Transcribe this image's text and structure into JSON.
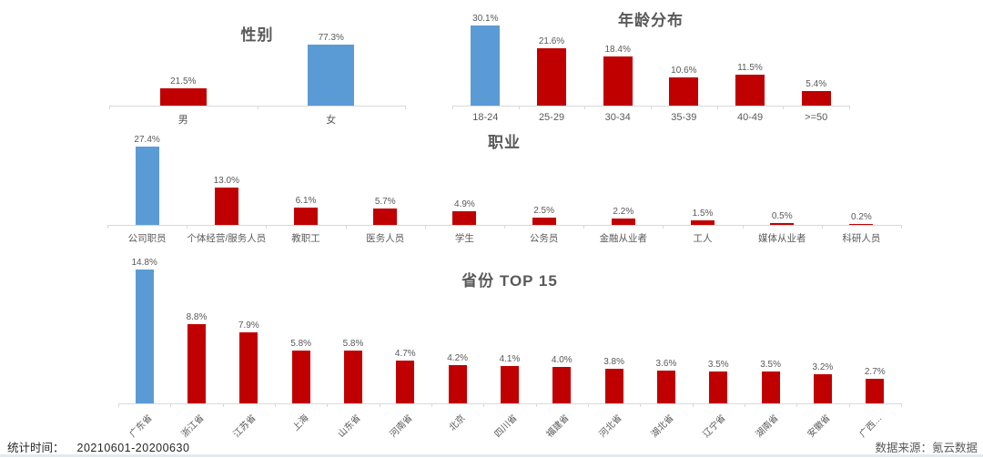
{
  "colors": {
    "highlight": "#5b9bd5",
    "bar": "#c00000",
    "axis": "#d9d9d9",
    "label": "#595959"
  },
  "footer": {
    "stats_time_label": "统计时间：",
    "stats_time_value": "20210601-20200630",
    "source_label": "数据来源：",
    "source_value": "氪云数据"
  },
  "chart_data": [
    {
      "id": "gender",
      "type": "bar",
      "title": "性别",
      "categories": [
        "男",
        "女"
      ],
      "values": [
        21.5,
        77.3
      ],
      "unit": "%",
      "value_format": "one_decimal_percent",
      "highlight_index": 1,
      "xlabel": "",
      "ylabel": "",
      "ylim": [
        0,
        80
      ],
      "grid": false,
      "legend": "none"
    },
    {
      "id": "age",
      "type": "bar",
      "title": "年龄分布",
      "categories": [
        "18-24",
        "25-29",
        "30-34",
        "35-39",
        "40-49",
        ">=50"
      ],
      "values": [
        30.1,
        21.6,
        18.4,
        10.6,
        11.5,
        5.4
      ],
      "unit": "%",
      "value_format": "one_decimal_percent",
      "highlight_index": 0,
      "xlabel": "",
      "ylabel": "",
      "ylim": [
        0,
        33
      ],
      "grid": false,
      "legend": "none"
    },
    {
      "id": "occupation",
      "type": "bar",
      "title": "职业",
      "categories": [
        "公司职员",
        "个体经营/服务人员",
        "教职工",
        "医务人员",
        "学生",
        "公务员",
        "金融从业者",
        "工人",
        "媒体从业者",
        "科研人员"
      ],
      "values": [
        27.4,
        13.0,
        6.1,
        5.7,
        4.9,
        2.5,
        2.2,
        1.5,
        0.5,
        0.2
      ],
      "unit": "%",
      "value_format": "one_decimal_percent",
      "highlight_index": 0,
      "xlabel": "",
      "ylabel": "",
      "ylim": [
        0,
        30
      ],
      "grid": false,
      "legend": "none"
    },
    {
      "id": "province",
      "type": "bar",
      "title": "省份 TOP 15",
      "categories": [
        "广东省",
        "浙江省",
        "江苏省",
        "上海",
        "山东省",
        "河南省",
        "北京",
        "四川省",
        "福建省",
        "河北省",
        "湖北省",
        "辽宁省",
        "湖南省",
        "安徽省",
        "广西…"
      ],
      "values": [
        14.8,
        8.8,
        7.9,
        5.8,
        5.8,
        4.7,
        4.2,
        4.1,
        4.0,
        3.8,
        3.6,
        3.5,
        3.5,
        3.2,
        2.7
      ],
      "unit": "%",
      "value_format": "one_decimal_percent",
      "highlight_index": 0,
      "xlabel": "",
      "ylabel": "",
      "ylim": [
        0,
        16
      ],
      "grid": false,
      "legend": "none",
      "rotated_labels": true
    }
  ]
}
